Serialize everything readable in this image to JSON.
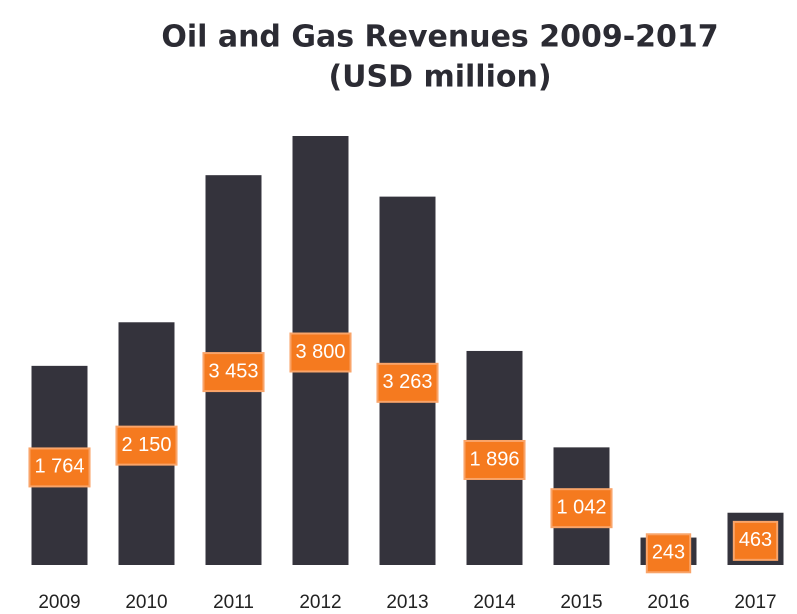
{
  "chart_data": {
    "type": "bar",
    "title": "Oil and Gas Revenues 2009-2017",
    "subtitle": "(USD million)",
    "categories": [
      "2009",
      "2010",
      "2011",
      "2012",
      "2013",
      "2014",
      "2015",
      "2016",
      "2017"
    ],
    "values": [
      1764,
      2150,
      3453,
      3800,
      3263,
      1896,
      1042,
      243,
      463
    ],
    "value_labels": [
      "1 764",
      "2 150",
      "3 453",
      "3 800",
      "3 263",
      "1 896",
      "1 042",
      "243",
      "463"
    ],
    "color": "#34333c",
    "label_color": "#f57a1f",
    "ylim": [
      0,
      3800
    ]
  }
}
